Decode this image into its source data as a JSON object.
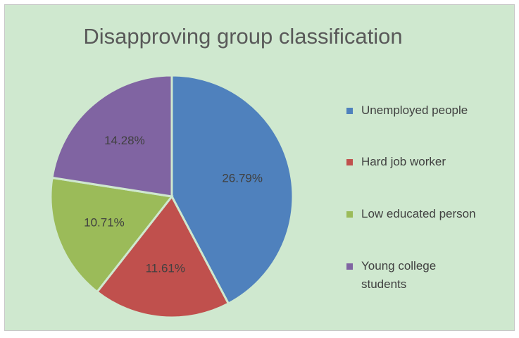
{
  "chart_data": {
    "type": "pie",
    "title": "Disapproving group classification",
    "categories": [
      "Unemployed people",
      "Hard job worker",
      "Low educated person",
      "Young college students"
    ],
    "values": [
      26.79,
      11.61,
      10.71,
      14.28
    ],
    "value_labels": [
      "26.79%",
      "11.61%",
      "10.71%",
      "14.28%"
    ],
    "colors": [
      "#4f81bd",
      "#c0504d",
      "#9bbb59",
      "#8064a2"
    ],
    "legend": "right"
  }
}
